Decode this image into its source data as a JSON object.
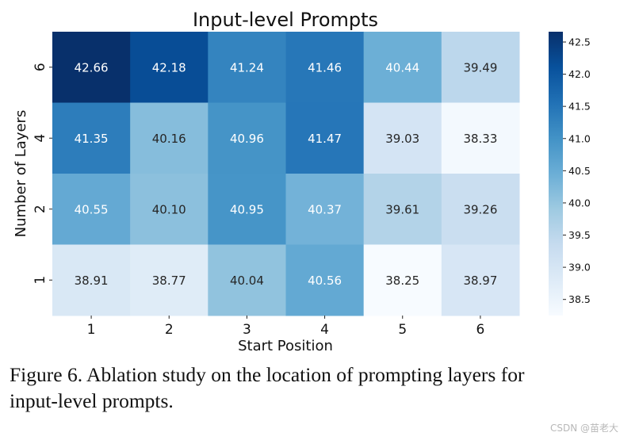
{
  "chart_data": {
    "type": "heatmap",
    "title": "Input-level Prompts",
    "xlabel": "Start Position",
    "ylabel": "Number of Layers",
    "x_categories": [
      "1",
      "2",
      "3",
      "4",
      "5",
      "6"
    ],
    "y_categories": [
      "6",
      "4",
      "2",
      "1"
    ],
    "values": [
      [
        42.66,
        42.18,
        41.24,
        41.46,
        40.44,
        39.49
      ],
      [
        41.35,
        40.16,
        40.96,
        41.47,
        39.03,
        38.33
      ],
      [
        40.55,
        40.1,
        40.95,
        40.37,
        39.61,
        39.26
      ],
      [
        38.91,
        38.77,
        40.04,
        40.56,
        38.25,
        38.97
      ]
    ],
    "colormap": "Blues",
    "colorbar": {
      "range": [
        38.25,
        42.66
      ],
      "ticks": [
        "38.5",
        "39.0",
        "39.5",
        "40.0",
        "40.5",
        "41.0",
        "41.5",
        "42.0",
        "42.5"
      ]
    },
    "annotations": true
  },
  "caption": {
    "line1": "Figure 6.  Ablation study on the location of prompting layers for",
    "line2": "input-level prompts."
  },
  "watermark": "CSDN @苗老大"
}
